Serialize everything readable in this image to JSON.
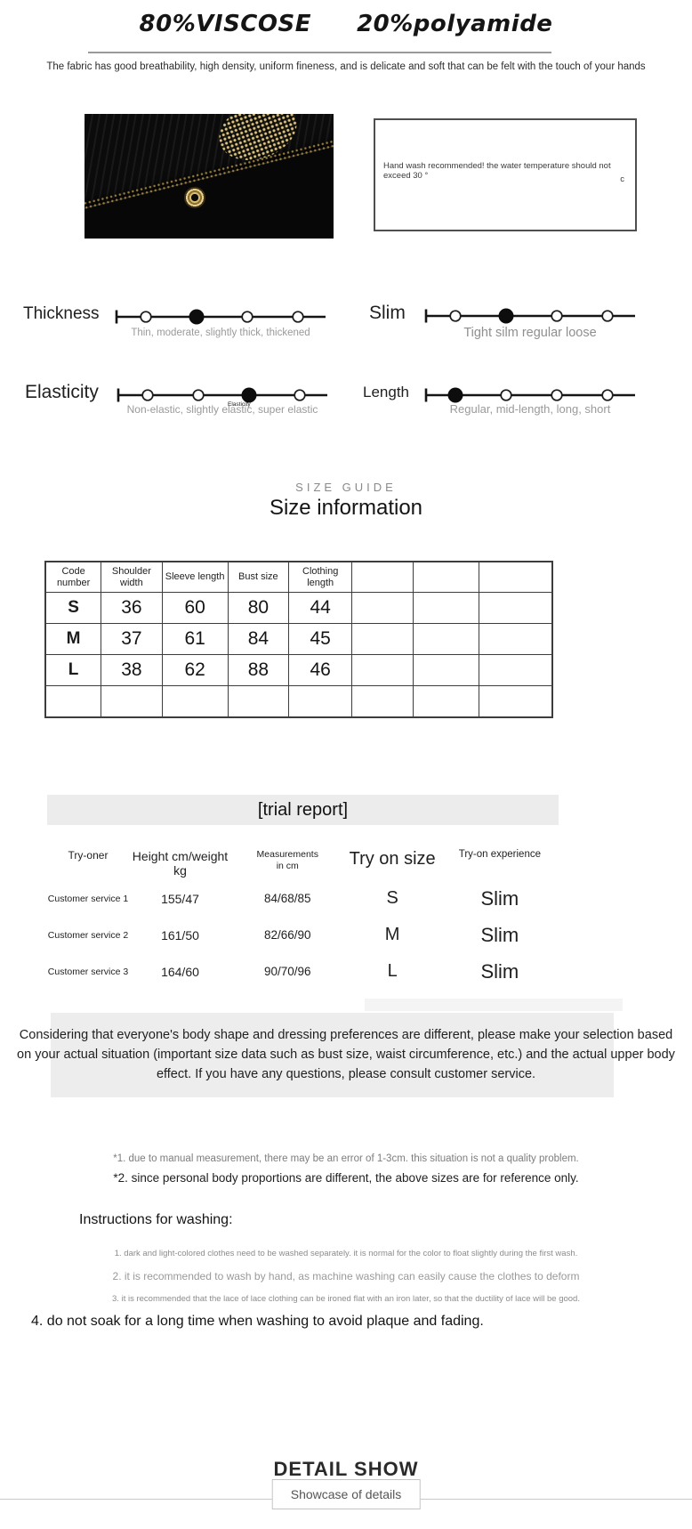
{
  "page": {
    "title": "80%VISCOSE  20%polyamide",
    "subtitle": "The fabric has good breathability, high density, uniform fineness, and is delicate and soft that can be felt with the touch of your hands"
  },
  "care_box": {
    "line1": "Hand wash recommended! the water temperature should not exceed 30 °",
    "line2": "c"
  },
  "sliders": [
    {
      "label": "Thickness",
      "caption": "Thin, moderate, slightly thick, thickened",
      "active": 2,
      "options": 4,
      "overlay": ""
    },
    {
      "label": "Slim",
      "caption": "Tight silm regular loose",
      "active": 2,
      "options": 4,
      "overlay": ""
    },
    {
      "label": "Elasticity",
      "caption": "Non-elastic, slightly elastic, super elastic",
      "active": 3,
      "options": 4,
      "overlay": "Elasticity"
    },
    {
      "label": "Length",
      "caption": "Regular, mid-length, long, short",
      "active": 1,
      "options": 4,
      "overlay": ""
    }
  ],
  "size_guide": {
    "eyebrow": "SIZE GUIDE",
    "title": "Size information"
  },
  "size_table": {
    "headers": [
      "Code number",
      "Shoulder width",
      "Sleeve length",
      "Bust size",
      "Clothing length",
      "",
      "",
      ""
    ],
    "rows": [
      [
        "S",
        "36",
        "60",
        "80",
        "44",
        "",
        "",
        ""
      ],
      [
        "M",
        "37",
        "61",
        "84",
        "45",
        "",
        "",
        ""
      ],
      [
        "L",
        "38",
        "62",
        "88",
        "46",
        "",
        "",
        ""
      ],
      [
        "",
        "",
        "",
        "",
        "",
        "",
        "",
        ""
      ]
    ]
  },
  "trial_report": {
    "title": "[trial report]",
    "headers": [
      "Try-oner",
      "Height cm/weight kg",
      "Measurements\nin cm",
      "Try on size",
      "Try-on experience"
    ],
    "rows": [
      [
        "Customer service 1",
        "155/47",
        "84/68/85",
        "S",
        "Slim"
      ],
      [
        "Customer service 2",
        "161/50",
        "82/66/90",
        "M",
        "Slim"
      ],
      [
        "Customer service 3",
        "164/60",
        "90/70/96",
        "L",
        "Slim"
      ]
    ],
    "note": "Considering that everyone's body shape and dressing preferences are different, please make your selection based on your actual situation (important size data such as bust size, waist circumference, etc.) and the actual upper body effect. If you have any questions, please consult customer service."
  },
  "disclaimers": [
    "*1. due to manual measurement, there may be an error of 1-3cm. this situation is not a quality problem.",
    "*2. since personal body proportions are different, the above sizes are for reference only."
  ],
  "washing": {
    "title": "Instructions for washing:",
    "items": [
      "1. dark and light-colored clothes need to be washed separately. it is normal for the color to float slightly during the first wash.",
      "2. it is recommended to wash by hand, as machine washing can easily cause the clothes to deform",
      "3. it is recommended that the lace of lace clothing can be ironed flat with an iron later, so that the ductility of lace will be good."
    ],
    "item4": "4. do not soak for a long time when washing to avoid plaque and fading."
  },
  "footer": {
    "title": "DETAIL SHOW",
    "subtitle": "Showcase of details"
  },
  "colors": {
    "accent_gold": "#b9984a",
    "bar_gray": "#ececec",
    "note_gray": "#ededed",
    "line_gray": "#9a9a9a"
  }
}
